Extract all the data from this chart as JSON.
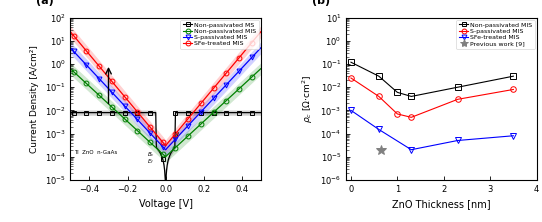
{
  "panel_a": {
    "xlabel": "Voltage [V]",
    "ylabel": "Current Density [A/cm²]",
    "xlim": [
      -0.5,
      0.5
    ],
    "ylim_log": [
      -5,
      2
    ],
    "series": {
      "Non-passivated MS": {
        "color": "black",
        "marker": "s",
        "j0": 0.008,
        "n": 60,
        "floor": 0.008,
        "jmin": 1e-05
      },
      "Non-passivated MIS": {
        "color": "green",
        "marker": "o",
        "j0": 0.0001,
        "n": 2.2,
        "asym": 1.0
      },
      "S-passivated MIS": {
        "color": "blue",
        "marker": "v",
        "j0": 0.0002,
        "n": 1.9,
        "asym": 1.0
      },
      "SFe-treated MIS": {
        "color": "red",
        "marker": "o",
        "j0": 0.0003,
        "n": 1.7,
        "asym": 1.0
      }
    },
    "legend_labels": [
      "Non-passivated MS",
      "Non-passivated MIS",
      "S-passivated MIS",
      "SFe-treated MIS"
    ],
    "legend_colors": [
      "black",
      "green",
      "blue",
      "red"
    ],
    "legend_markers": [
      "s",
      "o",
      "v",
      "o"
    ]
  },
  "panel_b": {
    "xlabel": "ZnO Thickness [nm]",
    "xlim": [
      -0.1,
      4.0
    ],
    "ylim_log": [
      -6,
      1
    ],
    "series": {
      "Non-passivated MIS": {
        "color": "black",
        "marker": "s",
        "x": [
          0,
          0.6,
          1.0,
          1.3,
          2.3,
          3.5
        ],
        "y": [
          0.12,
          0.03,
          0.006,
          0.004,
          0.01,
          0.03
        ]
      },
      "S-passivated MIS": {
        "color": "red",
        "marker": "o",
        "x": [
          0,
          0.6,
          1.0,
          1.3,
          2.3,
          3.5
        ],
        "y": [
          0.025,
          0.004,
          0.0007,
          0.0005,
          0.003,
          0.008
        ]
      },
      "SFe-treated MIS": {
        "color": "blue",
        "marker": "v",
        "x": [
          0,
          0.6,
          1.3,
          2.3,
          3.5
        ],
        "y": [
          0.001,
          0.00015,
          2e-05,
          5e-05,
          8e-05
        ]
      },
      "Previous work [9]": {
        "color": "gray",
        "marker": "*",
        "x": [
          0.65
        ],
        "y": [
          2e-05
        ]
      }
    },
    "legend_labels": [
      "Non-passivated MIS",
      "S-passivated MIS",
      "SFe-treated MIS",
      "Previous work [9]"
    ],
    "legend_colors": [
      "black",
      "red",
      "blue",
      "gray"
    ],
    "legend_markers": [
      "s",
      "o",
      "v",
      "*"
    ]
  }
}
